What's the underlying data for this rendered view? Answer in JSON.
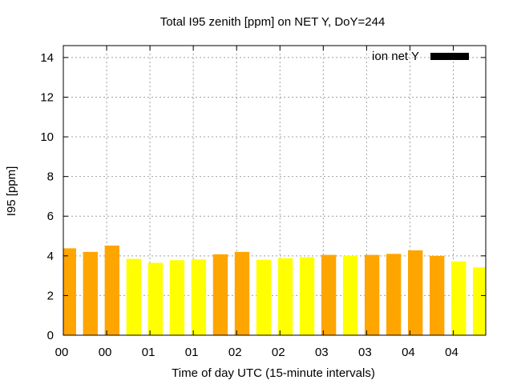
{
  "chart_data": {
    "type": "bar",
    "title": "Total I95 zenith [ppm] on NET Y, DoY=244",
    "xlabel": "Time of day UTC (15-minute intervals)",
    "ylabel": "I95 [ppm]",
    "ylim": [
      0,
      14.6
    ],
    "yticks": [
      0,
      2,
      4,
      6,
      8,
      10,
      12,
      14
    ],
    "grid": true,
    "legend": {
      "label": "ion net Y",
      "position": "top-right",
      "color": "#000000"
    },
    "x_tick_labels": [
      "00",
      "00",
      "01",
      "01",
      "02",
      "02",
      "03",
      "03",
      "04",
      "04"
    ],
    "colors": {
      "orange": "#ffa500",
      "yellow": "#ffff00"
    },
    "values": [
      4.38,
      4.2,
      4.52,
      3.85,
      3.65,
      3.78,
      3.82,
      4.08,
      4.2,
      3.8,
      3.88,
      3.93,
      4.05,
      4.0,
      4.05,
      4.1,
      4.28,
      4.0,
      3.72,
      3.42
    ],
    "bar_colors": [
      "orange",
      "orange",
      "orange",
      "yellow",
      "yellow",
      "yellow",
      "yellow",
      "orange",
      "orange",
      "yellow",
      "yellow",
      "yellow",
      "orange",
      "yellow",
      "orange",
      "orange",
      "orange",
      "orange",
      "yellow",
      "yellow"
    ]
  }
}
